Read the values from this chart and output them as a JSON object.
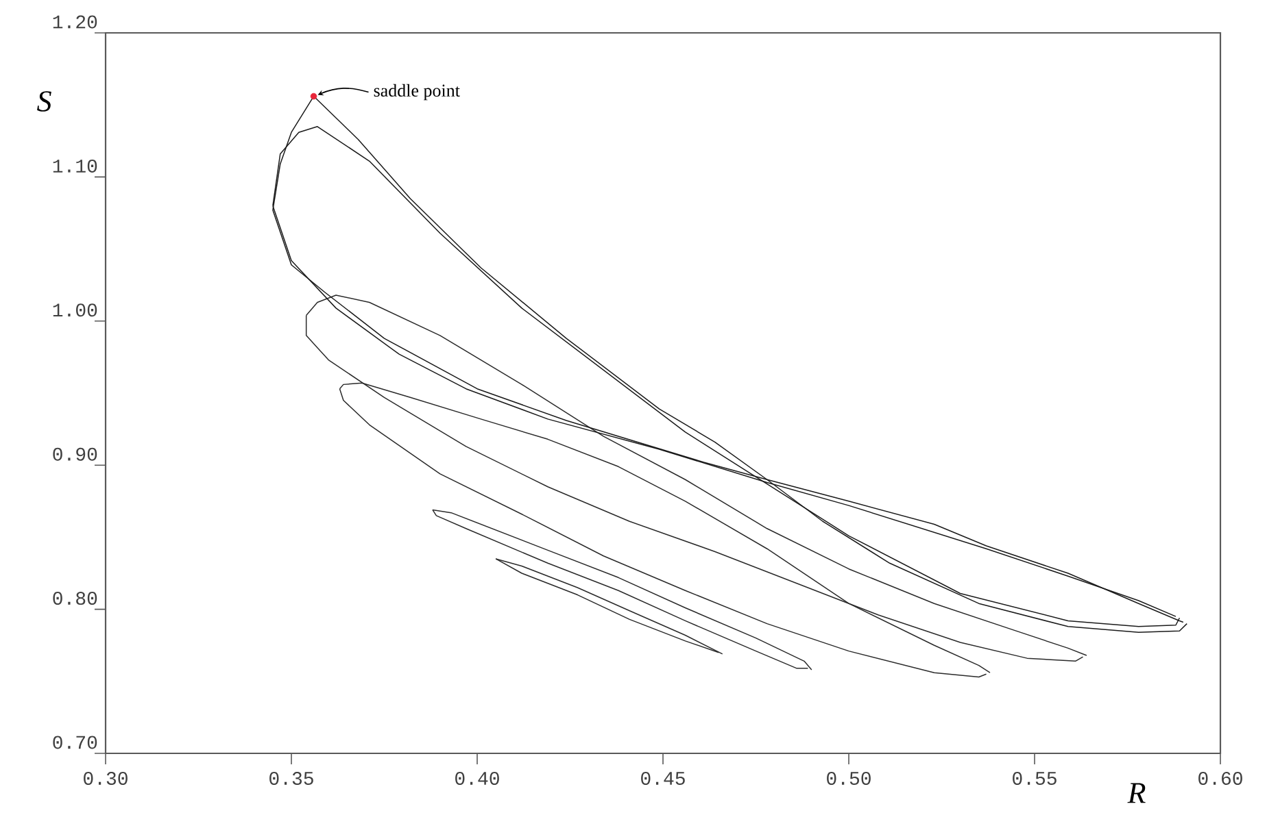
{
  "chart_data": {
    "type": "line",
    "xlabel": "R",
    "ylabel": "S",
    "xlim": [
      0.3,
      0.6
    ],
    "ylim": [
      0.7,
      1.2
    ],
    "xticks": [
      {
        "value": 0.3,
        "label": "0.30"
      },
      {
        "value": 0.35,
        "label": "0.35"
      },
      {
        "value": 0.4,
        "label": "0.40"
      },
      {
        "value": 0.45,
        "label": "0.45"
      },
      {
        "value": 0.5,
        "label": "0.50"
      },
      {
        "value": 0.55,
        "label": "0.55"
      },
      {
        "value": 0.6,
        "label": "0.60"
      }
    ],
    "yticks": [
      {
        "value": 0.7,
        "label": "0.70"
      },
      {
        "value": 0.8,
        "label": "0.80"
      },
      {
        "value": 0.9,
        "label": "0.90"
      },
      {
        "value": 1.0,
        "label": "1.00"
      },
      {
        "value": 1.1,
        "label": "1.10"
      },
      {
        "value": 1.2,
        "label": "1.20"
      }
    ],
    "annotations": [
      {
        "text": "saddle point",
        "x": 0.356,
        "y": 1.156
      }
    ],
    "series": [
      {
        "color": "#2a2a2a",
        "x": [
          0.405,
          0.412,
          0.427,
          0.441,
          0.456,
          0.466
        ],
        "values": [
          0.835,
          0.83,
          0.815,
          0.799,
          0.782,
          0.769
        ]
      },
      {
        "color": "#2a2a2a",
        "x": [
          0.405,
          0.412,
          0.427,
          0.441,
          0.456,
          0.465
        ],
        "values": [
          0.835,
          0.825,
          0.81,
          0.793,
          0.778,
          0.77
        ]
      },
      {
        "color": "#2a2a2a",
        "x": [
          0.388,
          0.393,
          0.419,
          0.438,
          0.456,
          0.475,
          0.488,
          0.49
        ],
        "values": [
          0.869,
          0.867,
          0.841,
          0.822,
          0.801,
          0.78,
          0.764,
          0.758
        ]
      },
      {
        "color": "#2a2a2a",
        "x": [
          0.388,
          0.389,
          0.397,
          0.419,
          0.438,
          0.456,
          0.475,
          0.486,
          0.489
        ],
        "values": [
          0.869,
          0.865,
          0.856,
          0.832,
          0.813,
          0.792,
          0.771,
          0.759,
          0.759
        ]
      },
      {
        "color": "#2a2a2a",
        "x": [
          0.363,
          0.364,
          0.369,
          0.382,
          0.401,
          0.419,
          0.438,
          0.456,
          0.478,
          0.5,
          0.523,
          0.535,
          0.538
        ],
        "values": [
          0.953,
          0.956,
          0.957,
          0.947,
          0.932,
          0.918,
          0.899,
          0.875,
          0.842,
          0.804,
          0.775,
          0.761,
          0.756
        ]
      },
      {
        "color": "#2a2a2a",
        "x": [
          0.363,
          0.364,
          0.371,
          0.39,
          0.412,
          0.434,
          0.456,
          0.478,
          0.5,
          0.523,
          0.535,
          0.537
        ],
        "values": [
          0.953,
          0.945,
          0.928,
          0.894,
          0.866,
          0.837,
          0.813,
          0.79,
          0.771,
          0.756,
          0.753,
          0.755
        ]
      },
      {
        "color": "#2a2a2a",
        "x": [
          0.354,
          0.357,
          0.362,
          0.371,
          0.39,
          0.412,
          0.434,
          0.456,
          0.478,
          0.5,
          0.523,
          0.545,
          0.559,
          0.564
        ],
        "values": [
          1.004,
          1.013,
          1.018,
          1.013,
          0.99,
          0.956,
          0.92,
          0.89,
          0.856,
          0.828,
          0.804,
          0.785,
          0.773,
          0.768
        ]
      },
      {
        "color": "#2a2a2a",
        "x": [
          0.354,
          0.354,
          0.36,
          0.375,
          0.397,
          0.419,
          0.441,
          0.464,
          0.486,
          0.508,
          0.53,
          0.548,
          0.561,
          0.563
        ],
        "values": [
          1.004,
          0.99,
          0.973,
          0.947,
          0.913,
          0.885,
          0.861,
          0.84,
          0.818,
          0.796,
          0.777,
          0.766,
          0.764,
          0.767
        ]
      },
      {
        "color": "#1a1a1a",
        "x": [
          0.345,
          0.347,
          0.352,
          0.357,
          0.371,
          0.39,
          0.412,
          0.434,
          0.456,
          0.478,
          0.5,
          0.53,
          0.559,
          0.578,
          0.588,
          0.589
        ],
        "values": [
          1.08,
          1.116,
          1.131,
          1.135,
          1.111,
          1.061,
          1.009,
          0.966,
          0.923,
          0.887,
          0.851,
          0.811,
          0.792,
          0.788,
          0.789,
          0.794
        ]
      },
      {
        "color": "#1a1a1a",
        "x": [
          0.345,
          0.35,
          0.362,
          0.379,
          0.397,
          0.419,
          0.449,
          0.478,
          0.5,
          0.537,
          0.559,
          0.578,
          0.588
        ],
        "values": [
          1.08,
          1.042,
          1.009,
          0.977,
          0.953,
          0.932,
          0.911,
          0.888,
          0.872,
          0.842,
          0.823,
          0.806,
          0.795
        ]
      },
      {
        "color": "#1a1a1a",
        "x": [
          0.345,
          0.347,
          0.35,
          0.356,
          0.368,
          0.382,
          0.401,
          0.424,
          0.449,
          0.464,
          0.478,
          0.493,
          0.511,
          0.535,
          0.559,
          0.578,
          0.589,
          0.591
        ],
        "values": [
          1.077,
          1.109,
          1.131,
          1.156,
          1.126,
          1.085,
          1.037,
          0.988,
          0.939,
          0.916,
          0.89,
          0.861,
          0.832,
          0.804,
          0.788,
          0.784,
          0.785,
          0.79
        ]
      },
      {
        "color": "#1a1a1a",
        "x": [
          0.345,
          0.35,
          0.359,
          0.375,
          0.4,
          0.424,
          0.461,
          0.478,
          0.5,
          0.523,
          0.537,
          0.559,
          0.578,
          0.589,
          0.59
        ],
        "values": [
          1.077,
          1.039,
          1.02,
          0.988,
          0.953,
          0.931,
          0.902,
          0.89,
          0.875,
          0.859,
          0.844,
          0.825,
          0.804,
          0.792,
          0.791
        ]
      },
      {
        "type": "scatter",
        "color": "#e8263a",
        "x": [
          0.356
        ],
        "values": [
          1.156
        ]
      }
    ]
  }
}
